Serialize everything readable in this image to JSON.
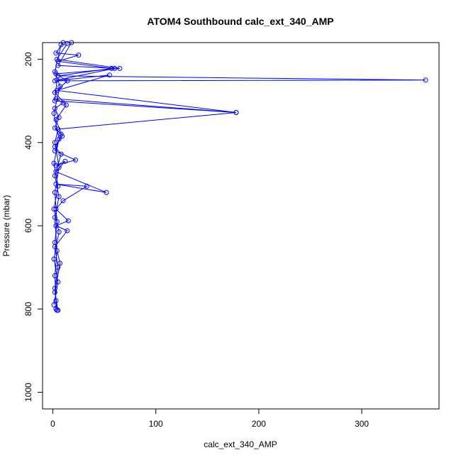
{
  "chart_data": {
    "type": "line",
    "title": "ATOM4 Southbound calc_ext_340_AMP",
    "xlabel": "calc_ext_340_AMP",
    "ylabel": "Pressure (mbar)",
    "xlim": [
      -10,
      375
    ],
    "ylim": [
      1040,
      160
    ],
    "y_inverted": true,
    "x_ticks": [
      0,
      100,
      200,
      300
    ],
    "y_ticks": [
      200,
      400,
      600,
      800,
      1000
    ],
    "grid": false,
    "legend": "none",
    "marker": "open-circle",
    "color": "#0000ff",
    "series": [
      {
        "values": [
          {
            "x": 10,
            "y": 160
          },
          {
            "x": 3,
            "y": 185
          },
          {
            "x": 25,
            "y": 190
          },
          {
            "x": 5,
            "y": 205
          },
          {
            "x": 57,
            "y": 222
          },
          {
            "x": 5,
            "y": 240
          },
          {
            "x": 362,
            "y": 250
          },
          {
            "x": 2,
            "y": 252
          },
          {
            "x": 55,
            "y": 238
          },
          {
            "x": 4,
            "y": 275
          },
          {
            "x": 178,
            "y": 328
          },
          {
            "x": 3,
            "y": 295
          },
          {
            "x": 10,
            "y": 305
          },
          {
            "x": 2,
            "y": 318
          },
          {
            "x": 6,
            "y": 340
          },
          {
            "x": 2,
            "y": 365
          },
          {
            "x": 8,
            "y": 380
          },
          {
            "x": 2,
            "y": 420
          },
          {
            "x": 22,
            "y": 442
          },
          {
            "x": 3,
            "y": 455
          },
          {
            "x": 12,
            "y": 445
          },
          {
            "x": 3,
            "y": 470
          },
          {
            "x": 52,
            "y": 520
          },
          {
            "x": 3,
            "y": 500
          },
          {
            "x": 33,
            "y": 505
          },
          {
            "x": 10,
            "y": 540
          },
          {
            "x": 3,
            "y": 560
          },
          {
            "x": 15,
            "y": 588
          },
          {
            "x": 3,
            "y": 600
          },
          {
            "x": 14,
            "y": 612
          },
          {
            "x": 2,
            "y": 650
          },
          {
            "x": 5,
            "y": 700
          },
          {
            "x": 2,
            "y": 750
          },
          {
            "x": 4,
            "y": 803
          }
        ]
      },
      {
        "values": [
          {
            "x": 14,
            "y": 162
          },
          {
            "x": 4,
            "y": 200
          },
          {
            "x": 65,
            "y": 222
          },
          {
            "x": 3,
            "y": 235
          },
          {
            "x": 14,
            "y": 252
          },
          {
            "x": 2,
            "y": 280
          },
          {
            "x": 13,
            "y": 310
          },
          {
            "x": 3,
            "y": 345
          },
          {
            "x": 9,
            "y": 385
          },
          {
            "x": 2,
            "y": 410
          },
          {
            "x": 8,
            "y": 428
          },
          {
            "x": 2,
            "y": 480
          },
          {
            "x": 6,
            "y": 530
          },
          {
            "x": 2,
            "y": 580
          },
          {
            "x": 4,
            "y": 660
          },
          {
            "x": 2,
            "y": 720
          },
          {
            "x": 3,
            "y": 780
          },
          {
            "x": 3,
            "y": 800
          }
        ]
      },
      {
        "values": [
          {
            "x": 18,
            "y": 160
          },
          {
            "x": 5,
            "y": 215
          },
          {
            "x": 60,
            "y": 222
          },
          {
            "x": 4,
            "y": 250
          },
          {
            "x": 2,
            "y": 300
          },
          {
            "x": 178,
            "y": 328
          },
          {
            "x": 5,
            "y": 368
          },
          {
            "x": 2,
            "y": 400
          },
          {
            "x": 6,
            "y": 460
          },
          {
            "x": 2,
            "y": 520
          },
          {
            "x": 4,
            "y": 590
          },
          {
            "x": 2,
            "y": 640
          },
          {
            "x": 7,
            "y": 690
          },
          {
            "x": 2,
            "y": 760
          },
          {
            "x": 5,
            "y": 803
          }
        ]
      },
      {
        "values": [
          {
            "x": 8,
            "y": 165
          },
          {
            "x": 2,
            "y": 230
          },
          {
            "x": 7,
            "y": 265
          },
          {
            "x": 1,
            "y": 330
          },
          {
            "x": 6,
            "y": 392
          },
          {
            "x": 1,
            "y": 450
          },
          {
            "x": 5,
            "y": 505
          },
          {
            "x": 1,
            "y": 560
          },
          {
            "x": 6,
            "y": 615
          },
          {
            "x": 1,
            "y": 680
          },
          {
            "x": 5,
            "y": 735
          },
          {
            "x": 1,
            "y": 790
          }
        ]
      }
    ]
  }
}
